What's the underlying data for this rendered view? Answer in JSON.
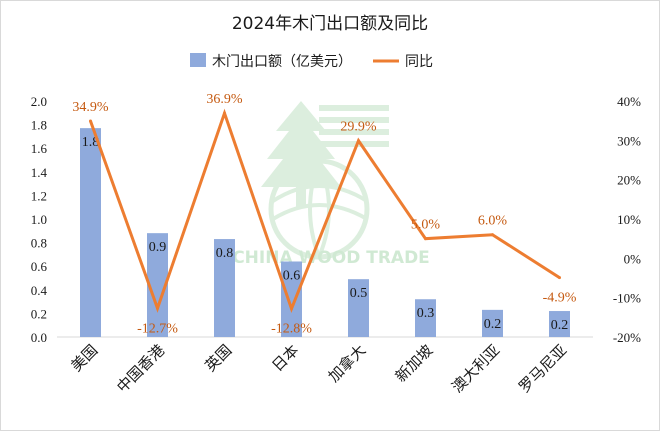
{
  "chart_data": {
    "type": "bar+line",
    "title": "2024年木门出口额及同比",
    "categories": [
      "美国",
      "中国香港",
      "英国",
      "日本",
      "加拿大",
      "新加坡",
      "澳大利亚",
      "罗马尼亚"
    ],
    "series": [
      {
        "name": "木门出口额（亿美元）",
        "type": "bar",
        "axis": "left",
        "values": [
          1.77,
          0.88,
          0.83,
          0.64,
          0.49,
          0.32,
          0.23,
          0.22
        ],
        "labels": [
          "1.8",
          "0.9",
          "0.8",
          "0.6",
          "0.5",
          "0.3",
          "0.2",
          "0.2"
        ]
      },
      {
        "name": "同比",
        "type": "line",
        "axis": "right",
        "values": [
          34.9,
          -12.7,
          36.9,
          -12.8,
          29.9,
          5.0,
          6.0,
          -4.9
        ],
        "labels": [
          "34.9%",
          "-12.7%",
          "36.9%",
          "-12.8%",
          "29.9%",
          "5.0%",
          "6.0%",
          "-4.9%"
        ]
      }
    ],
    "y_left": {
      "min": 0,
      "max": 2.0,
      "step": 0.2,
      "ticks": [
        "0.0",
        "0.2",
        "0.4",
        "0.6",
        "0.8",
        "1.0",
        "1.2",
        "1.4",
        "1.6",
        "1.8",
        "2.0"
      ]
    },
    "y_right": {
      "min": -20,
      "max": 40,
      "step": 10,
      "ticks": [
        "-20%",
        "-10%",
        "0%",
        "10%",
        "20%",
        "30%",
        "40%"
      ]
    },
    "legend": {
      "position": "top"
    },
    "grid": false
  },
  "colors": {
    "bar": "#8faadc",
    "line": "#ed7d31",
    "line_label": "#c55a11",
    "watermark": "#c8e6cc"
  },
  "watermark": {
    "text": "CHINA WOOD TRADE"
  }
}
